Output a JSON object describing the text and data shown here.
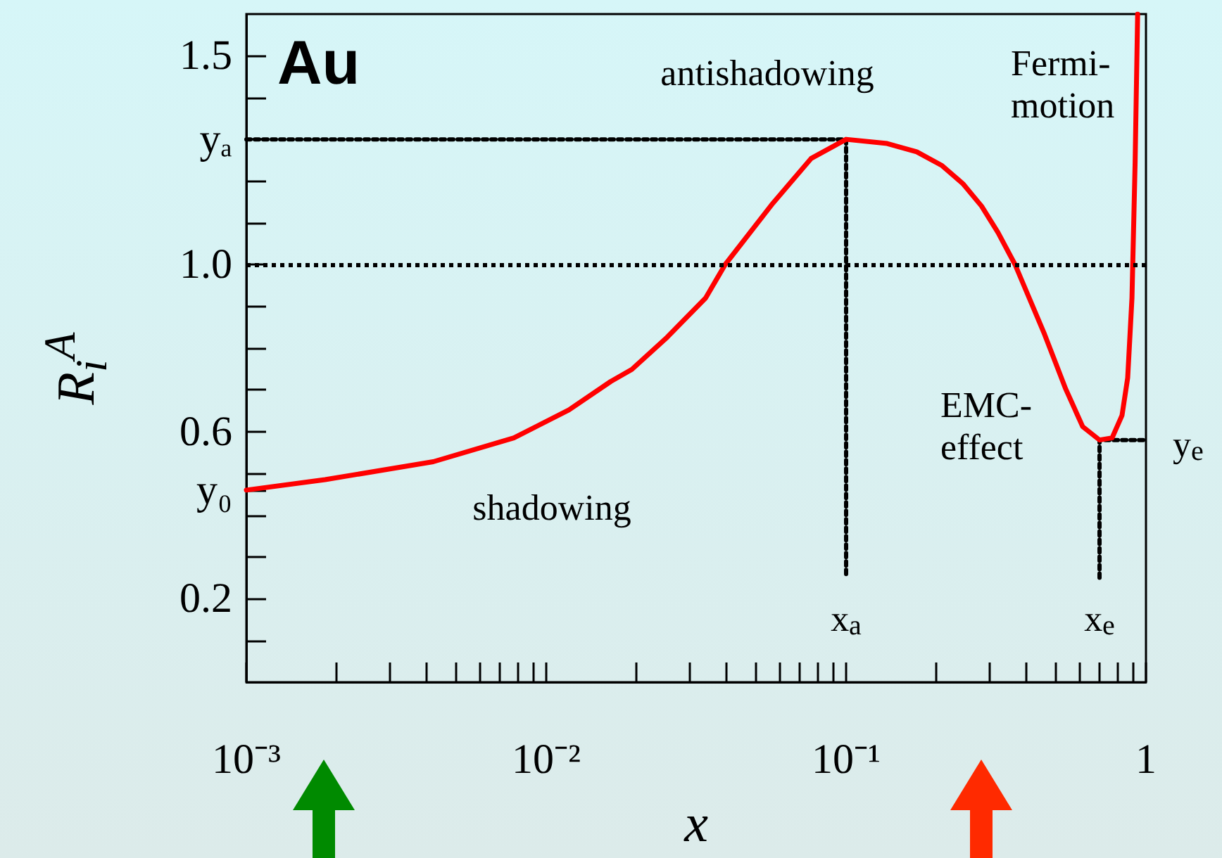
{
  "chart_data": {
    "type": "line",
    "title": "Au",
    "xlabel": "x",
    "ylabel": "R$_{i}$$^{A}$",
    "log": "x",
    "xlim": [
      0.001,
      1
    ],
    "ylim": [
      0,
      1.6
    ],
    "xticks": [
      {
        "value": 0.001,
        "label": "10⁻³"
      },
      {
        "value": 0.002,
        "label": null
      },
      {
        "value": 0.003,
        "label": null
      },
      {
        "value": 0.004,
        "label": null
      },
      {
        "value": 0.005,
        "label": null
      },
      {
        "value": 0.006,
        "label": null
      },
      {
        "value": 0.007,
        "label": null
      },
      {
        "value": 0.008,
        "label": null
      },
      {
        "value": 0.009,
        "label": null
      },
      {
        "value": 0.01,
        "label": "10⁻²"
      },
      {
        "value": 0.02,
        "label": null
      },
      {
        "value": 0.03,
        "label": null
      },
      {
        "value": 0.04,
        "label": null
      },
      {
        "value": 0.05,
        "label": null
      },
      {
        "value": 0.06,
        "label": null
      },
      {
        "value": 0.07,
        "label": null
      },
      {
        "value": 0.08,
        "label": null
      },
      {
        "value": 0.09,
        "label": null
      },
      {
        "value": 0.1,
        "label": "10⁻¹"
      },
      {
        "value": 0.2,
        "label": null
      },
      {
        "value": 0.3,
        "label": null
      },
      {
        "value": 0.4,
        "label": null
      },
      {
        "value": 0.5,
        "label": null
      },
      {
        "value": 0.6,
        "label": null
      },
      {
        "value": 0.7,
        "label": null
      },
      {
        "value": 0.8,
        "label": null
      },
      {
        "value": 0.9,
        "label": null
      },
      {
        "value": 1,
        "label": "1"
      }
    ],
    "yticks": [
      {
        "value": 0.1,
        "label": null
      },
      0.2,
      {
        "value": 0.3,
        "label": null
      },
      {
        "value": 0.4,
        "label": null
      },
      {
        "value": 0.46,
        "label": "y₀"
      },
      {
        "value": 0.5,
        "label": null
      },
      0.6,
      {
        "value": 0.7,
        "label": null
      },
      {
        "value": 0.8,
        "label": null
      },
      {
        "value": 0.9,
        "label": null
      },
      {
        "value": 1.0,
        "label": "1.0"
      },
      {
        "value": 1.1,
        "label": null
      },
      {
        "value": 1.2,
        "label": null
      },
      {
        "value": 1.3,
        "label": "yₐ"
      },
      {
        "value": 1.4,
        "label": null
      },
      1.5
    ],
    "series": [
      {
        "color": "#ff0000",
        "x": [
          0.001,
          0.00183,
          0.0042,
          0.0078,
          0.0119,
          0.0164,
          0.0193,
          0.0253,
          0.034,
          0.0395,
          0.057,
          0.0764,
          0.1,
          0.137,
          0.172,
          0.209,
          0.245,
          0.283,
          0.321,
          0.366,
          0.459,
          0.54,
          0.615,
          0.7,
          0.771,
          0.832,
          0.869,
          0.898,
          0.92,
          0.938
        ],
        "values": [
          0.46,
          0.485,
          0.528,
          0.585,
          0.652,
          0.72,
          0.749,
          0.826,
          0.92,
          1.0,
          1.147,
          1.254,
          1.3,
          1.29,
          1.27,
          1.237,
          1.194,
          1.14,
          1.077,
          1.0,
          0.833,
          0.702,
          0.612,
          0.58,
          0.585,
          0.639,
          0.729,
          0.92,
          1.244,
          1.6
        ]
      },
      {
        "color": "#000000",
        "line_style": "dotted",
        "x": [
          0.001,
          0.1,
          0.1
        ],
        "values": [
          1.3,
          1.3,
          0.25
        ]
      },
      {
        "color": "#000000",
        "line_style": "dotted",
        "x": [
          0.7,
          0.7,
          1
        ],
        "values": [
          0.25,
          0.58,
          0.58
        ]
      }
    ],
    "ref_lines": [
      {
        "axis": "y",
        "value": 1.0,
        "color": "#000000",
        "line_style": "dotted"
      }
    ],
    "annotations": [
      "antishadowing",
      "shadowing",
      "EMC-\neffect",
      "Fermi-\nmotion",
      "x$_{a}$",
      "x$_{e}$",
      "y$_{e}$"
    ]
  }
}
